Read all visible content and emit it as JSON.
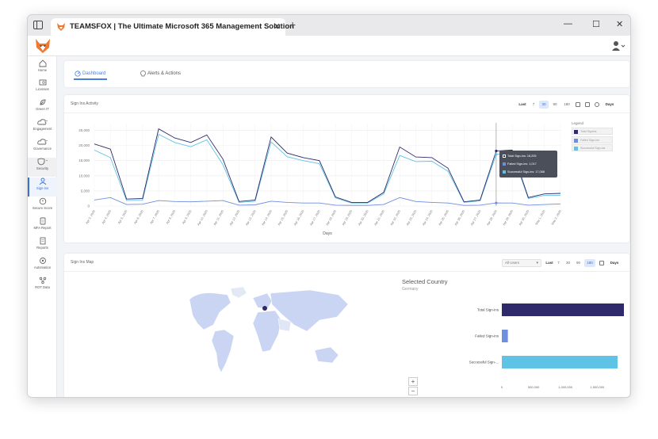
{
  "browser": {
    "tab_title": "TEAMSFOX | The Ultimate Microsoft 365 Management Solution",
    "close_glyph": "✕",
    "new_tab_glyph": "+",
    "minimize_glyph": "—",
    "maximize_glyph": "☐",
    "window_close_glyph": "✕"
  },
  "sidebar": {
    "items": [
      {
        "label": "Home",
        "icon": "home-icon"
      },
      {
        "label": "Licenses",
        "icon": "licenses-icon"
      },
      {
        "label": "Green IT",
        "icon": "leaf-icon"
      },
      {
        "label": "Engagement",
        "icon": "cloud-icon"
      },
      {
        "label": "Governance",
        "icon": "cloud-sync-icon"
      },
      {
        "label": "Security",
        "icon": "shield-icon"
      },
      {
        "label": "Sign-ins",
        "icon": "user-sign-in-icon"
      },
      {
        "label": "Secure Score",
        "icon": "secure-score-icon"
      },
      {
        "label": "MFA Report",
        "icon": "mfa-report-icon"
      },
      {
        "label": "Reports",
        "icon": "reports-icon"
      },
      {
        "label": "Automation",
        "icon": "automation-icon"
      },
      {
        "label": "ROT Data",
        "icon": "rot-data-icon"
      }
    ]
  },
  "subtabs": {
    "dashboard": "Dashboard",
    "alerts": "Alerts & Actions"
  },
  "activity": {
    "title": "Sign Ins Activity",
    "range_label": "Last",
    "ranges": [
      "7",
      "30",
      "90",
      "180"
    ],
    "active_range": "30",
    "days_label": "Days",
    "legend_title": "Legend",
    "tooltip": {
      "total": "Total Sign-ins: 18,205",
      "failed": "Failed Sign-ins: 1,017",
      "successful": "Successful Sign-ins: 17,088"
    }
  },
  "map_card": {
    "title": "Sign Ins Map",
    "users_select": "All Users",
    "range_label": "Last",
    "ranges": [
      "7",
      "30",
      "90",
      "180"
    ],
    "active_range": "180",
    "days_label": "Days",
    "zoom_in": "+",
    "zoom_out": "−",
    "selected_country_title": "Selected Country",
    "selected_country": "Germany"
  },
  "chart_data": [
    {
      "type": "line",
      "xlabel": "Days",
      "ylabel": "",
      "ylim": [
        0,
        27500
      ],
      "yticks": [
        0,
        5000,
        10000,
        15000,
        20000,
        25000
      ],
      "ytick_labels": [
        "0",
        "5,000",
        "10,000",
        "15,000",
        "20,000",
        "25,000"
      ],
      "grid": true,
      "legend": "right",
      "x": [
        "Apr 3, 2025",
        "Apr 4, 2025",
        "Apr 5, 2025",
        "Apr 6, 2025",
        "Apr 7, 2025",
        "Apr 8, 2025",
        "Apr 9, 2025",
        "Apr 10, 2025",
        "Apr 11, 2025",
        "Apr 12, 2025",
        "Apr 13, 2025",
        "Apr 14, 2025",
        "Apr 15, 2025",
        "Apr 16, 2025",
        "Apr 17, 2025",
        "Apr 18, 2025",
        "Apr 19, 2025",
        "Apr 20, 2025",
        "Apr 21, 2025",
        "Apr 22, 2025",
        "Apr 23, 2025",
        "Apr 24, 2025",
        "Apr 25, 2025",
        "Apr 26, 2025",
        "Apr 27, 2025",
        "Apr 28, 2025",
        "Apr 29, 2025",
        "Apr 30, 2025",
        "May 1, 2025",
        "May 2, 2025"
      ],
      "series": [
        {
          "name": "Total Signins",
          "color": "#2e2a6b",
          "values": [
            20500,
            18800,
            2300,
            2500,
            25500,
            22500,
            21000,
            23500,
            15500,
            1500,
            2000,
            22800,
            17500,
            16000,
            15000,
            3000,
            1200,
            1200,
            4500,
            19500,
            16200,
            16000,
            12500,
            1400,
            2000,
            18205,
            18500,
            2800,
            4000,
            4200
          ]
        },
        {
          "name": "Failed Sign-ins",
          "color": "#6f8ee0",
          "values": [
            2000,
            2800,
            500,
            600,
            1800,
            1500,
            1400,
            1600,
            1800,
            300,
            400,
            1600,
            1200,
            1000,
            1000,
            300,
            200,
            200,
            500,
            2800,
            1500,
            1200,
            1000,
            200,
            300,
            1017,
            1000,
            300,
            500,
            700
          ]
        },
        {
          "name": "Successful Sign-ins",
          "color": "#5ec3e4",
          "values": [
            18500,
            16000,
            1800,
            1900,
            23700,
            21000,
            19600,
            21900,
            13700,
            1200,
            1600,
            21200,
            16300,
            15000,
            14000,
            2700,
            1000,
            1000,
            4000,
            16700,
            14700,
            14800,
            11500,
            1200,
            1700,
            17088,
            17500,
            2500,
            3500,
            3500
          ]
        }
      ]
    },
    {
      "type": "bar",
      "orientation": "horizontal",
      "categories": [
        "Total Sign-ins",
        "Failed Sign-ins",
        "Successful Sign-..."
      ],
      "values": [
        1920000,
        95000,
        1820000
      ],
      "colors": [
        "#2e2a6b",
        "#6f8ee0",
        "#5ec3e4"
      ],
      "xlim": [
        0,
        1920000
      ],
      "xticks": [
        0,
        500000,
        1000000,
        1500000
      ],
      "xtick_labels": [
        "0",
        "500,000",
        "1,000,000",
        "1,500,000"
      ]
    }
  ]
}
